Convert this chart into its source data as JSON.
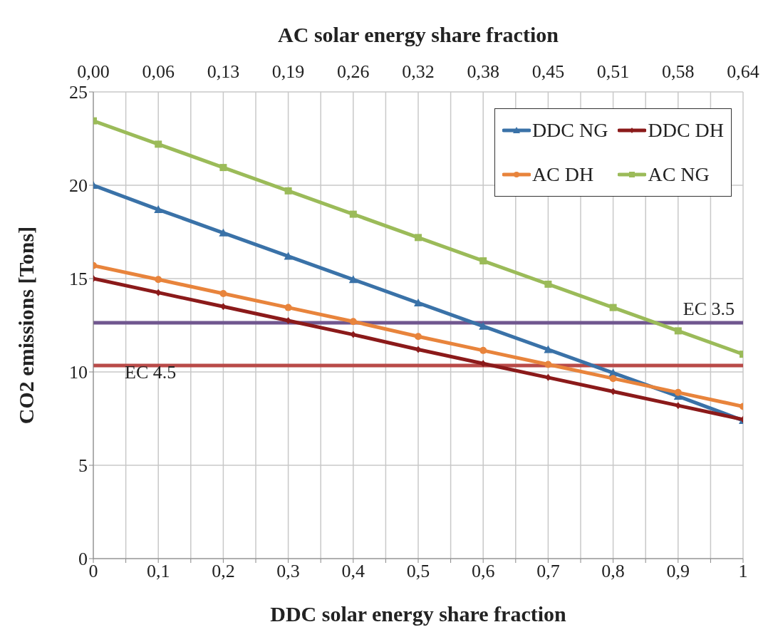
{
  "chart_data": {
    "type": "line",
    "xlabel": "DDC solar energy share fraction",
    "x2label": "AC solar energy share fraction",
    "ylabel": "CO2 emissions [Tons]",
    "x": [
      0,
      0.1,
      0.2,
      0.3,
      0.4,
      0.5,
      0.6,
      0.7,
      0.8,
      0.9,
      1
    ],
    "series": [
      {
        "name": "DDC NG",
        "color": "#3a72a8",
        "marker": "triangle",
        "values": [
          20.0,
          18.7,
          17.45,
          16.2,
          14.95,
          13.7,
          12.45,
          11.2,
          9.95,
          8.7,
          7.4
        ]
      },
      {
        "name": "DDC DH",
        "color": "#8b1a1a",
        "marker": "diamond",
        "values": [
          15.0,
          14.25,
          13.5,
          12.75,
          12.0,
          11.2,
          10.45,
          9.7,
          8.95,
          8.2,
          7.45
        ]
      },
      {
        "name": "AC DH",
        "color": "#e8843c",
        "marker": "circle",
        "values": [
          15.7,
          14.95,
          14.2,
          13.45,
          12.7,
          11.9,
          11.15,
          10.4,
          9.65,
          8.9,
          8.15
        ]
      },
      {
        "name": "AC NG",
        "color": "#9bbb59",
        "marker": "square",
        "values": [
          23.45,
          22.2,
          20.95,
          19.7,
          18.45,
          17.2,
          15.95,
          14.7,
          13.45,
          12.2,
          10.95
        ]
      }
    ],
    "xlim": [
      0,
      1
    ],
    "xticks": [
      0,
      {
        "value": 0.05,
        "label": null
      },
      {
        "value": 0.1,
        "label": "0,1"
      },
      {
        "value": 0.15,
        "label": null
      },
      {
        "value": 0.2,
        "label": "0,2"
      },
      {
        "value": 0.25,
        "label": null
      },
      {
        "value": 0.3,
        "label": "0,3"
      },
      {
        "value": 0.35,
        "label": null
      },
      {
        "value": 0.4,
        "label": "0,4"
      },
      {
        "value": 0.45,
        "label": null
      },
      {
        "value": 0.5,
        "label": "0,5"
      },
      {
        "value": 0.55,
        "label": null
      },
      {
        "value": 0.6,
        "label": "0,6"
      },
      {
        "value": 0.65,
        "label": null
      },
      {
        "value": 0.7,
        "label": "0,7"
      },
      {
        "value": 0.75,
        "label": null
      },
      {
        "value": 0.8,
        "label": "0,8"
      },
      {
        "value": 0.85,
        "label": null
      },
      {
        "value": 0.9,
        "label": "0,9"
      },
      {
        "value": 0.95,
        "label": null
      },
      1
    ],
    "x2lim": [
      0,
      0.64
    ],
    "x2ticks": [
      {
        "value": 0,
        "label": "0,00"
      },
      {
        "value": 0.064,
        "label": "0,06"
      },
      {
        "value": 0.128,
        "label": "0,13"
      },
      {
        "value": 0.192,
        "label": "0,19"
      },
      {
        "value": 0.256,
        "label": "0,26"
      },
      {
        "value": 0.32,
        "label": "0,32"
      },
      {
        "value": 0.384,
        "label": "0,38"
      },
      {
        "value": 0.448,
        "label": "0,45"
      },
      {
        "value": 0.512,
        "label": "0,51"
      },
      {
        "value": 0.576,
        "label": "0,58"
      },
      {
        "value": 0.64,
        "label": "0,64"
      }
    ],
    "ylim": [
      0,
      25
    ],
    "yticks": [
      0,
      5,
      10,
      15,
      20,
      25
    ],
    "ref_lines": [
      {
        "axis": "y",
        "value": 12.63,
        "label": "EC 3.5",
        "color": "#70578f"
      },
      {
        "axis": "y",
        "value": 10.34,
        "label": "EC 4.5",
        "color": "#b94a48"
      }
    ],
    "grid": true,
    "legend": "top right",
    "line_style": "solid"
  }
}
